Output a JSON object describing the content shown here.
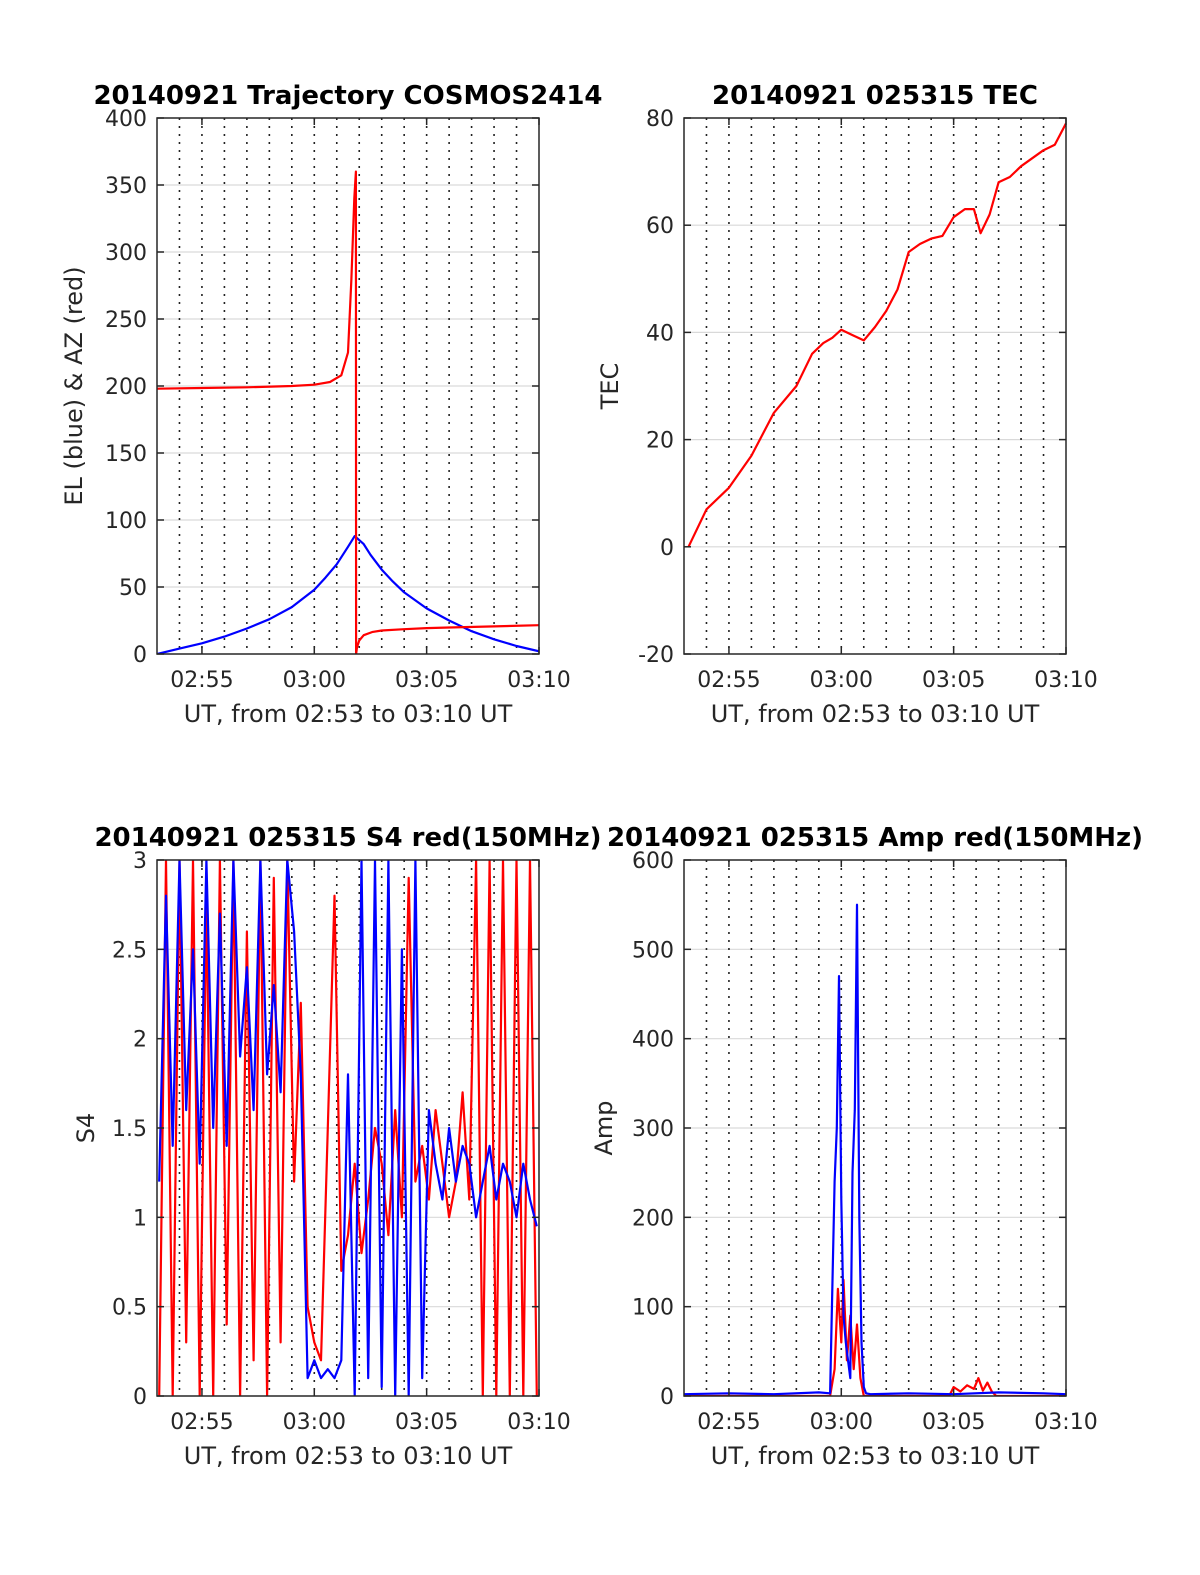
{
  "chart_data": [
    {
      "type": "line",
      "title": "20140921 Trajectory COSMOS2414",
      "xlabel": "UT, from 02:53 to 03:10 UT",
      "ylabel": "EL (blue) & AZ (red)",
      "xlim": [
        173,
        190
      ],
      "ylim": [
        0,
        400
      ],
      "xticks": [
        175,
        180,
        185,
        190
      ],
      "xticklabels": [
        "02:55",
        "03:00",
        "03:05",
        "03:10"
      ],
      "yticks": [
        0,
        50,
        100,
        150,
        200,
        250,
        300,
        350,
        400
      ],
      "yticklabels": [
        "0",
        "50",
        "100",
        "150",
        "200",
        "250",
        "300",
        "350",
        "400"
      ],
      "grid": true,
      "series": [
        {
          "color": "#0000ff",
          "x": [
            173.0,
            174.0,
            175.0,
            176.0,
            177.0,
            178.0,
            179.0,
            180.0,
            180.5,
            181.0,
            181.5,
            181.8,
            182.2,
            182.5,
            183.0,
            183.5,
            184.0,
            185.0,
            186.0,
            187.0,
            188.0,
            189.0,
            190.0
          ],
          "y": [
            0,
            4,
            8,
            13,
            19,
            26,
            35,
            48,
            57,
            67,
            80,
            88,
            82,
            74,
            63,
            54,
            46,
            34,
            25,
            17,
            11,
            6,
            2
          ]
        },
        {
          "color": "#ff0000",
          "x": [
            173.0,
            175.0,
            177.0,
            179.0,
            180.0,
            180.7,
            181.2,
            181.5,
            181.65,
            181.78,
            181.85,
            181.86,
            181.9,
            182.0,
            182.2,
            182.6,
            183.0,
            184.0,
            185.0,
            186.0,
            188.0,
            190.0
          ],
          "y": [
            198,
            198.5,
            199,
            200,
            201,
            203,
            208,
            225,
            280,
            340,
            360,
            0,
            5,
            10,
            14,
            16.5,
            17.5,
            18.5,
            19.3,
            19.8,
            20.6,
            21.5
          ]
        }
      ]
    },
    {
      "type": "line",
      "title": "20140921 025315 TEC",
      "xlabel": "UT, from 02:53 to 03:10 UT",
      "ylabel": "TEC",
      "xlim": [
        173,
        190
      ],
      "ylim": [
        -20,
        80
      ],
      "xticks": [
        175,
        180,
        185,
        190
      ],
      "xticklabels": [
        "02:55",
        "03:00",
        "03:05",
        "03:10"
      ],
      "yticks": [
        -20,
        0,
        20,
        40,
        60,
        80
      ],
      "yticklabels": [
        "-20",
        "0",
        "20",
        "40",
        "60",
        "80"
      ],
      "grid": true,
      "series": [
        {
          "color": "#ff0000",
          "x": [
            173.2,
            174.0,
            175.0,
            176.0,
            177.0,
            178.0,
            178.7,
            179.2,
            179.6,
            180.0,
            180.5,
            181.0,
            181.5,
            182.0,
            182.5,
            183.0,
            183.5,
            184.0,
            184.5,
            185.0,
            185.5,
            185.9,
            186.2,
            186.6,
            187.0,
            187.5,
            188.0,
            188.5,
            189.0,
            189.5,
            190.0
          ],
          "y": [
            0,
            7,
            11,
            17,
            25,
            30,
            36,
            38,
            39,
            40.5,
            39.5,
            38.5,
            41,
            44,
            48,
            55,
            56.5,
            57.5,
            58,
            61.5,
            63,
            63,
            58.5,
            62,
            68,
            69,
            71,
            72.5,
            74,
            75,
            79
          ]
        }
      ]
    },
    {
      "type": "line",
      "title": "20140921 025315 S4 red(150MHz)",
      "xlabel": "UT, from 02:53 to 03:10 UT",
      "ylabel": "S4",
      "xlim": [
        173,
        190
      ],
      "ylim": [
        0,
        3
      ],
      "xticks": [
        175,
        180,
        185,
        190
      ],
      "xticklabels": [
        "02:55",
        "03:00",
        "03:05",
        "03:10"
      ],
      "yticks": [
        0,
        0.5,
        1,
        1.5,
        2,
        2.5,
        3
      ],
      "yticklabels": [
        "0",
        "0.5",
        "1",
        "1.5",
        "2",
        "2.5",
        "3"
      ],
      "grid": true,
      "series": [
        {
          "color": "#ff0000",
          "x": [
            173.1,
            173.4,
            173.7,
            174.0,
            174.3,
            174.6,
            174.9,
            175.2,
            175.5,
            175.8,
            176.1,
            176.4,
            176.7,
            177.0,
            177.3,
            177.6,
            177.9,
            178.2,
            178.5,
            178.8,
            179.1,
            179.4,
            179.7,
            180.0,
            180.3,
            180.6,
            180.9,
            181.2,
            181.5,
            181.8,
            182.1,
            182.4,
            182.7,
            183.0,
            183.3,
            183.6,
            183.9,
            184.2,
            184.5,
            184.8,
            185.1,
            185.4,
            185.7,
            186.0,
            186.3,
            186.6,
            186.9,
            187.2,
            187.5,
            187.8,
            188.1,
            188.4,
            188.7,
            189.0,
            189.3,
            189.6,
            189.9
          ],
          "y": [
            0,
            3,
            0,
            3,
            0.3,
            3,
            0,
            2.8,
            0,
            3,
            0.4,
            3,
            0,
            2.6,
            0.2,
            3,
            0,
            2.9,
            0.3,
            3,
            1.2,
            2.2,
            0.5,
            0.3,
            0.2,
            1.5,
            2.8,
            0.7,
            0.9,
            1.3,
            0.8,
            1.1,
            1.5,
            1.3,
            0.9,
            1.6,
            1.0,
            2.9,
            1.2,
            1.4,
            1.1,
            1.6,
            1.3,
            1.0,
            1.2,
            1.7,
            1.1,
            3,
            0,
            3,
            0,
            3,
            0,
            3,
            0,
            3,
            0
          ]
        },
        {
          "color": "#0000ff",
          "x": [
            173.1,
            173.4,
            173.7,
            174.0,
            174.3,
            174.6,
            174.9,
            175.2,
            175.5,
            175.8,
            176.1,
            176.4,
            176.7,
            177.0,
            177.3,
            177.6,
            177.9,
            178.2,
            178.5,
            178.8,
            179.1,
            179.4,
            179.7,
            180.0,
            180.3,
            180.6,
            180.9,
            181.2,
            181.5,
            181.8,
            182.1,
            182.4,
            182.7,
            183.0,
            183.3,
            183.6,
            183.9,
            184.2,
            184.5,
            184.8,
            185.1,
            185.4,
            185.7,
            186.0,
            186.3,
            186.6,
            186.9,
            187.2,
            187.5,
            187.8,
            188.1,
            188.4,
            188.7,
            189.0,
            189.3,
            189.6,
            189.9
          ],
          "y": [
            1.2,
            2.8,
            1.4,
            3,
            1.6,
            2.5,
            1.3,
            3,
            1.5,
            2.7,
            1.4,
            3,
            1.9,
            2.4,
            1.6,
            3,
            1.8,
            2.3,
            1.7,
            3,
            2.6,
            1.8,
            0.1,
            0.2,
            0.1,
            0.15,
            0.1,
            0.2,
            1.8,
            0,
            3,
            0.1,
            3,
            0.05,
            3,
            0,
            2.5,
            0,
            3,
            0.1,
            1.6,
            1.3,
            1.1,
            1.5,
            1.2,
            1.4,
            1.3,
            1.0,
            1.2,
            1.4,
            1.1,
            1.3,
            1.2,
            1.0,
            1.3,
            1.1,
            0.95
          ]
        }
      ]
    },
    {
      "type": "line",
      "title": "20140921 025315 Amp red(150MHz)",
      "xlabel": "UT, from 02:53 to 03:10 UT",
      "ylabel": "Amp",
      "xlim": [
        173,
        190
      ],
      "ylim": [
        0,
        600
      ],
      "xticks": [
        175,
        180,
        185,
        190
      ],
      "xticklabels": [
        "02:55",
        "03:00",
        "03:05",
        "03:10"
      ],
      "yticks": [
        0,
        100,
        200,
        300,
        400,
        500,
        600
      ],
      "yticklabels": [
        "0",
        "100",
        "200",
        "300",
        "400",
        "500",
        "600"
      ],
      "grid": true,
      "series": [
        {
          "color": "#ff0000",
          "x": [
            173.0,
            179.5,
            179.7,
            179.85,
            180.0,
            180.1,
            180.25,
            180.4,
            180.55,
            180.7,
            180.85,
            181.0,
            181.2,
            184.8,
            185.0,
            185.3,
            185.6,
            185.9,
            186.1,
            186.3,
            186.5,
            186.7,
            186.9,
            190.0
          ],
          "y": [
            0,
            0,
            30,
            120,
            60,
            130,
            40,
            90,
            30,
            80,
            20,
            0,
            0,
            0,
            10,
            5,
            12,
            8,
            20,
            6,
            15,
            5,
            0,
            0
          ]
        },
        {
          "color": "#0000ff",
          "x": [
            173.0,
            175.0,
            177.0,
            179.0,
            179.5,
            179.7,
            179.8,
            179.9,
            180.0,
            180.1,
            180.2,
            180.3,
            180.4,
            180.5,
            180.6,
            180.7,
            180.8,
            180.9,
            181.0,
            181.1,
            181.3,
            183.0,
            185.0,
            187.0,
            189.0,
            190.0
          ],
          "y": [
            2,
            3,
            2,
            4,
            3,
            240,
            300,
            470,
            220,
            90,
            60,
            40,
            20,
            250,
            320,
            550,
            200,
            60,
            10,
            3,
            2,
            3,
            2,
            4,
            3,
            2
          ]
        }
      ]
    }
  ]
}
